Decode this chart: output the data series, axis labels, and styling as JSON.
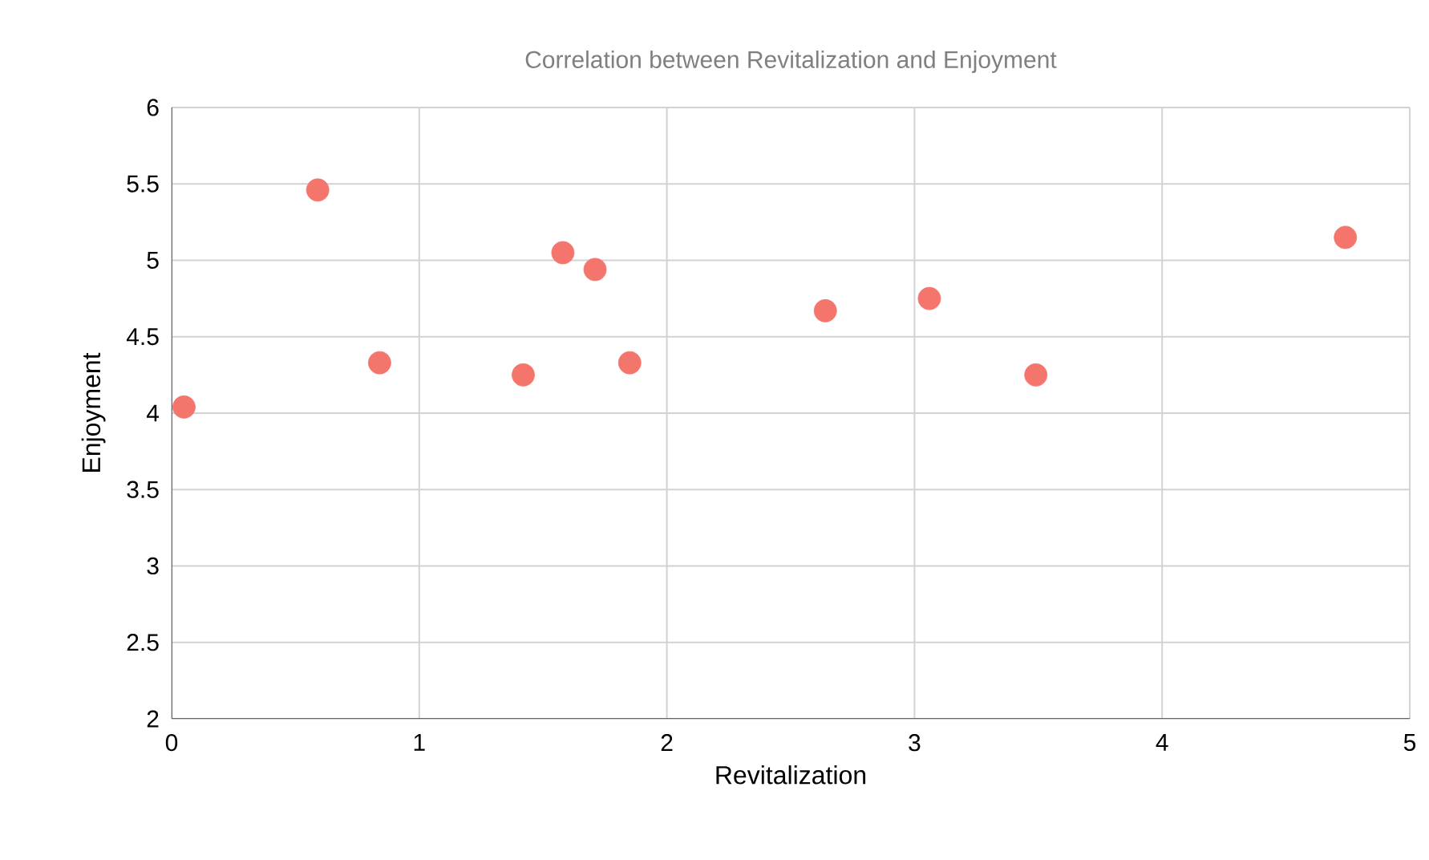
{
  "chart_data": {
    "type": "scatter",
    "title": "Correlation between Revitalization and Enjoyment",
    "xlabel": "Revitalization",
    "ylabel": "Enjoyment",
    "x": [
      0.05,
      0.59,
      0.84,
      1.42,
      1.58,
      1.71,
      1.85,
      2.64,
      3.06,
      3.49,
      4.74
    ],
    "values": [
      4.04,
      5.46,
      4.33,
      4.25,
      5.05,
      4.94,
      4.33,
      4.67,
      4.75,
      4.25,
      5.15
    ],
    "color": "#f4756c",
    "marker": "circle",
    "grid": true,
    "xlim": [
      0,
      5
    ],
    "xticks": [
      0,
      1,
      2,
      3,
      4,
      5
    ],
    "ylim": [
      2,
      6
    ],
    "yticks": [
      2,
      2.5,
      3,
      3.5,
      4,
      4.5,
      5,
      5.5,
      6
    ]
  }
}
